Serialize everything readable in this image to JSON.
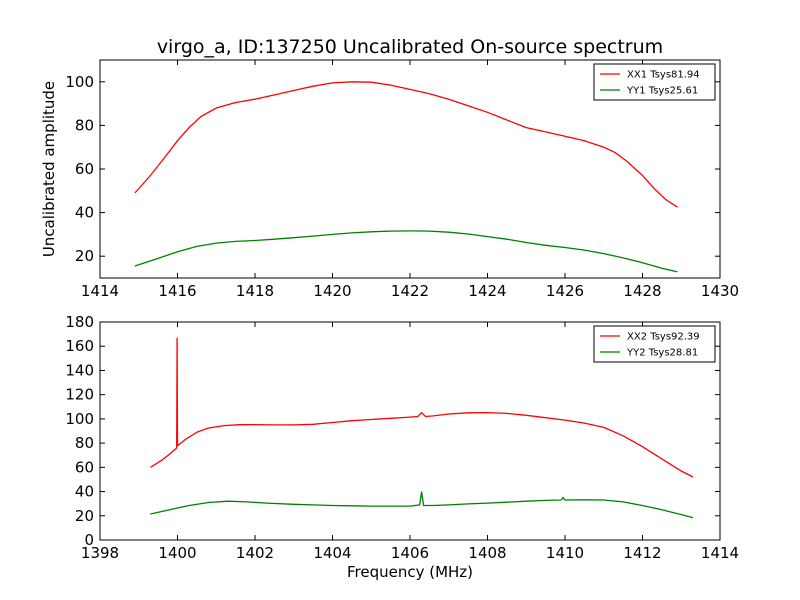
{
  "figure": {
    "title": "virgo_a, ID:137250 Uncalibrated On-source spectrum",
    "xlabel": "Frequency (MHz)",
    "ylabel": "Uncalibrated amplitude"
  },
  "chart_data": [
    {
      "type": "line",
      "title": "virgo_a, ID:137250 Uncalibrated On-source spectrum",
      "xlabel": "",
      "ylabel": "Uncalibrated amplitude",
      "xlim": [
        1414,
        1430
      ],
      "ylim": [
        10,
        110
      ],
      "xticks": [
        1414,
        1416,
        1418,
        1420,
        1422,
        1424,
        1426,
        1428,
        1430
      ],
      "yticks": [
        20,
        40,
        60,
        80,
        100
      ],
      "legend": "top-right",
      "grid": false,
      "series": [
        {
          "name": "XX1 Tsys81.94",
          "color": "#ff0000",
          "x": [
            1414.9,
            1415.3,
            1415.7,
            1416.0,
            1416.3,
            1416.6,
            1417.0,
            1417.5,
            1418.0,
            1418.5,
            1419.0,
            1419.5,
            1420.0,
            1420.5,
            1421.0,
            1421.5,
            1422.0,
            1422.5,
            1423.0,
            1423.5,
            1424.0,
            1424.5,
            1425.0,
            1425.5,
            1426.0,
            1426.5,
            1427.0,
            1427.3,
            1427.6,
            1428.0,
            1428.3,
            1428.6,
            1428.9
          ],
          "y": [
            49,
            57,
            66,
            73,
            79,
            84,
            88,
            90.5,
            92,
            94,
            96,
            98,
            99.5,
            100,
            99.8,
            98.5,
            96.5,
            94.5,
            92,
            89,
            86,
            82.5,
            79,
            77,
            75,
            73,
            70,
            67.5,
            63.5,
            57,
            51,
            46,
            42.5
          ]
        },
        {
          "name": "YY1 Tsys25.61",
          "color": "#008000",
          "x": [
            1414.9,
            1415.5,
            1416.0,
            1416.5,
            1417.0,
            1417.5,
            1418.0,
            1418.5,
            1419.0,
            1419.5,
            1420.0,
            1420.5,
            1421.0,
            1421.5,
            1422.0,
            1422.5,
            1423.0,
            1423.5,
            1424.0,
            1424.5,
            1425.0,
            1425.5,
            1426.0,
            1426.5,
            1427.0,
            1427.5,
            1428.0,
            1428.5,
            1428.9
          ],
          "y": [
            15.5,
            19,
            22,
            24.5,
            26,
            26.8,
            27.2,
            27.8,
            28.5,
            29.2,
            30,
            30.7,
            31.2,
            31.5,
            31.6,
            31.5,
            31,
            30.2,
            29,
            27.8,
            26.3,
            25,
            24,
            22.8,
            21.2,
            19.2,
            17,
            14.5,
            12.8
          ]
        }
      ]
    },
    {
      "type": "line",
      "title": "",
      "xlabel": "Frequency (MHz)",
      "ylabel": "",
      "xlim": [
        1398,
        1414
      ],
      "ylim": [
        0,
        180
      ],
      "xticks": [
        1398,
        1400,
        1402,
        1404,
        1406,
        1408,
        1410,
        1412,
        1414
      ],
      "yticks": [
        0,
        20,
        40,
        60,
        80,
        100,
        120,
        140,
        160,
        180
      ],
      "legend": "top-right",
      "grid": false,
      "series": [
        {
          "name": "XX2 Tsys92.39",
          "color": "#ff0000",
          "x": [
            1399.3,
            1399.6,
            1399.8,
            1399.98,
            1399.99,
            1400.0,
            1400.01,
            1400.2,
            1400.5,
            1400.8,
            1401.2,
            1401.6,
            1402.0,
            1402.5,
            1403.0,
            1403.5,
            1404.0,
            1404.5,
            1405.0,
            1405.5,
            1406.0,
            1406.2,
            1406.3,
            1406.4,
            1406.6,
            1407.0,
            1407.5,
            1408.0,
            1408.5,
            1409.0,
            1409.5,
            1410.0,
            1410.5,
            1411.0,
            1411.5,
            1412.0,
            1412.5,
            1413.0,
            1413.3
          ],
          "y": [
            60,
            66,
            71,
            76,
            167,
            78,
            78,
            83,
            89,
            92.5,
            94.5,
            95.2,
            95.3,
            95,
            95,
            95.5,
            97,
            98.5,
            99.5,
            100.5,
            101.5,
            102,
            105,
            102,
            102.5,
            104,
            105,
            105.2,
            104.5,
            103,
            101,
            99,
            96.5,
            93,
            86,
            77,
            67,
            57,
            52
          ]
        },
        {
          "name": "YY2 Tsys28.81",
          "color": "#008000",
          "x": [
            1399.3,
            1399.8,
            1400.3,
            1400.8,
            1401.3,
            1401.8,
            1402.3,
            1403.0,
            1403.5,
            1404.0,
            1404.5,
            1405.0,
            1405.5,
            1406.0,
            1406.25,
            1406.3,
            1406.35,
            1406.6,
            1407.0,
            1407.5,
            1408.0,
            1408.5,
            1409.0,
            1409.5,
            1409.9,
            1409.95,
            1410.0,
            1410.5,
            1411.0,
            1411.5,
            1412.0,
            1412.5,
            1413.0,
            1413.3
          ],
          "y": [
            21.5,
            25,
            28.5,
            31,
            32,
            31.5,
            30.5,
            29.5,
            29,
            28.5,
            28.2,
            28,
            28,
            28,
            29,
            40,
            28.5,
            28.5,
            29,
            29.8,
            30.5,
            31.2,
            32,
            32.7,
            33,
            35,
            33,
            33.2,
            33,
            31.5,
            28.5,
            25,
            21,
            18.5
          ]
        }
      ]
    }
  ]
}
